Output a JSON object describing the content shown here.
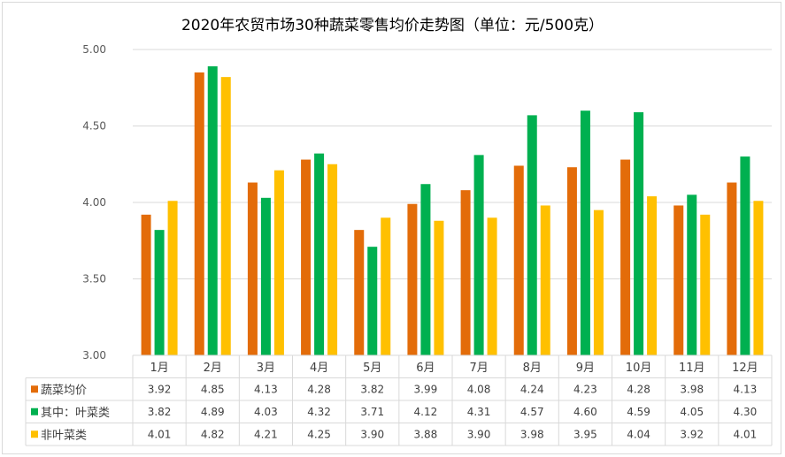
{
  "chart_data": {
    "type": "bar",
    "title": "2020年农贸市场30种蔬菜零售均价走势图（单位：元/500克）",
    "categories": [
      "1月",
      "2月",
      "3月",
      "4月",
      "5月",
      "6月",
      "7月",
      "8月",
      "9月",
      "10月",
      "11月",
      "12月"
    ],
    "series": [
      {
        "name": "蔬菜均价",
        "color": "#E36C09",
        "values": [
          3.92,
          4.85,
          4.13,
          4.28,
          3.82,
          3.99,
          4.08,
          4.24,
          4.23,
          4.28,
          3.98,
          4.13
        ]
      },
      {
        "name": "其中：叶菜类",
        "color": "#00B050",
        "values": [
          3.82,
          4.89,
          4.03,
          4.32,
          3.71,
          4.12,
          4.31,
          4.57,
          4.6,
          4.59,
          4.05,
          4.3
        ]
      },
      {
        "name": "非叶菜类",
        "color": "#FFC000",
        "values": [
          4.01,
          4.82,
          4.21,
          4.25,
          3.9,
          3.88,
          3.9,
          3.98,
          3.95,
          4.04,
          3.92,
          4.01
        ]
      }
    ],
    "ylim": [
      3.0,
      5.0
    ],
    "yticks": [
      "3.00",
      "3.50",
      "4.00",
      "4.50",
      "5.00"
    ],
    "grid": true,
    "legend": "data-table"
  }
}
